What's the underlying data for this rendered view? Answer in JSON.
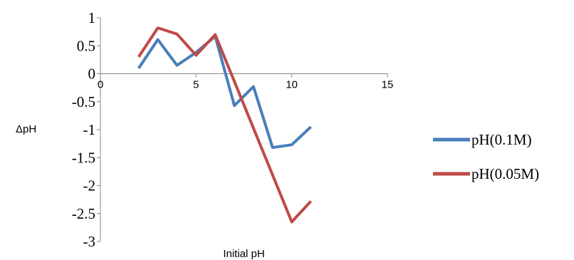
{
  "chart_data": {
    "type": "line",
    "xlabel": "Initial pH",
    "ylabel": "ΔpH",
    "xlim": [
      0,
      15
    ],
    "ylim": [
      -3,
      1
    ],
    "x_ticks": [
      0,
      5,
      10,
      15
    ],
    "y_ticks": [
      1,
      0.5,
      0,
      -0.5,
      -1,
      -1.5,
      -2,
      -2.5,
      -3
    ],
    "x_tick_labels": [
      "0",
      "5",
      "10",
      "15"
    ],
    "y_tick_labels": [
      "1",
      "0.5",
      "0",
      "-0.5",
      "-1",
      "-1.5",
      "-2",
      "-2.5",
      "-3"
    ],
    "grid": false,
    "legend_position": "right",
    "series": [
      {
        "name": "pH(0.1M)",
        "color": "#4a7ebb",
        "x": [
          2,
          3,
          4,
          5,
          6,
          7,
          8,
          9,
          10,
          11
        ],
        "y": [
          0.1,
          0.61,
          0.15,
          0.38,
          0.67,
          -0.57,
          -0.23,
          -1.32,
          -1.27,
          -0.95
        ]
      },
      {
        "name": "pH(0.05M)",
        "color": "#be4b48",
        "x": [
          2,
          3,
          4,
          5,
          6,
          10,
          11
        ],
        "y": [
          0.3,
          0.82,
          0.71,
          0.33,
          0.7,
          -2.65,
          -2.28
        ]
      }
    ]
  }
}
